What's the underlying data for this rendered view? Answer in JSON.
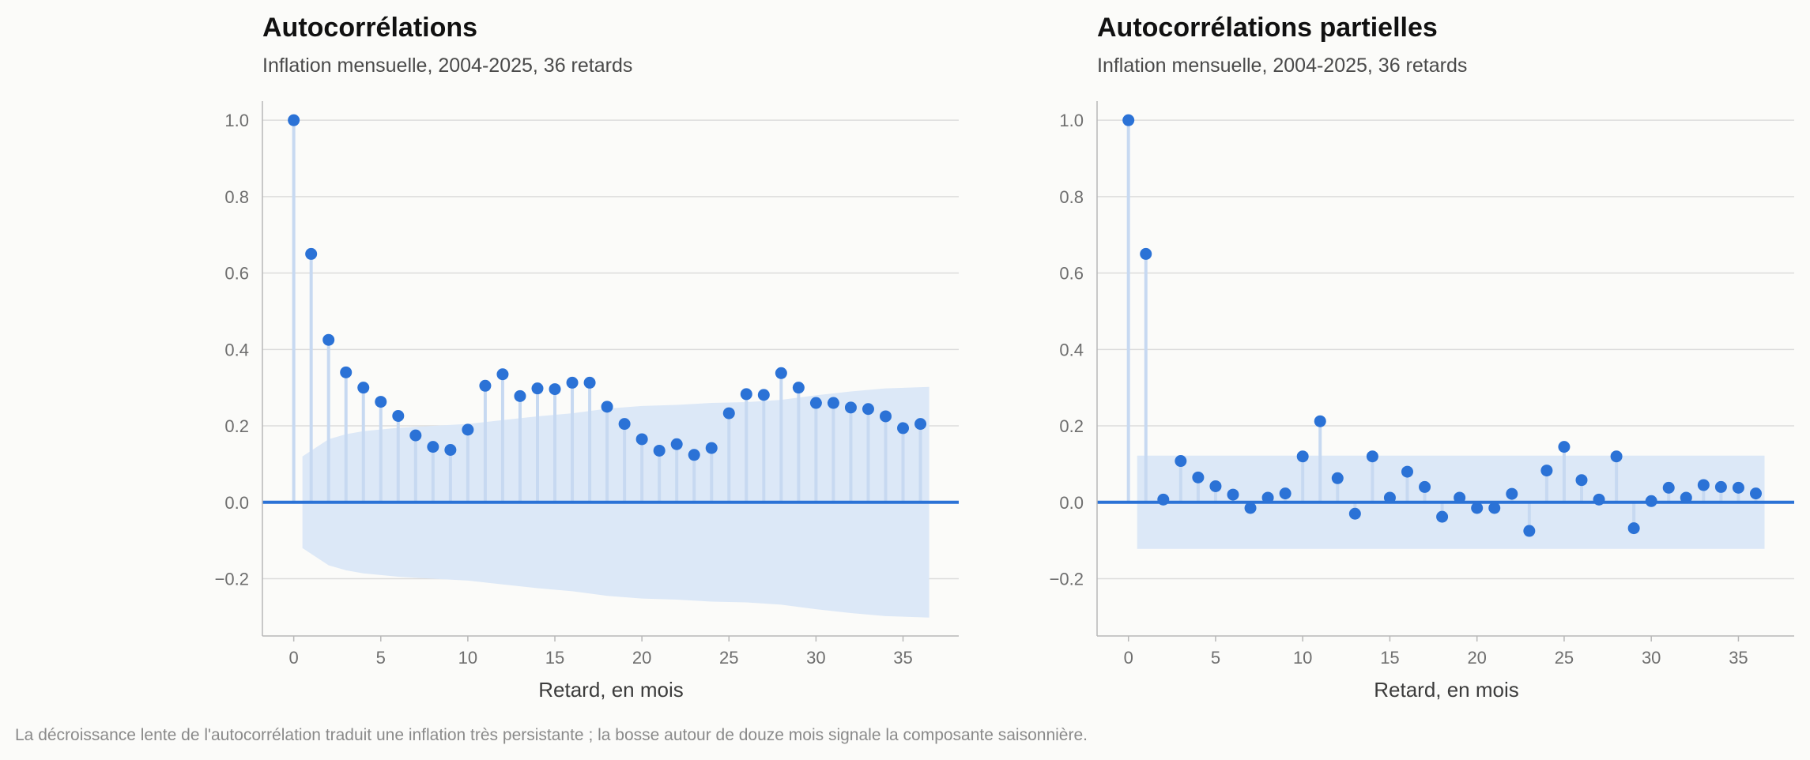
{
  "caption": "La décroissance lente de l'autocorrélation traduit une inflation très persistante ; la bosse autour de douze mois signale la composante saisonnière.",
  "colors": {
    "marker": "#2b72d6",
    "zero_line": "#2b72d6",
    "stem": "#c7d9f1",
    "band": "#dce8f7",
    "grid": "#dcdcdc",
    "axis": "#b8b8b8"
  },
  "chart_data": [
    {
      "type": "scatter",
      "title": "Autocorrélations",
      "subtitle": "Inflation mensuelle, 2004-2025, 36 retards",
      "xlabel": "Retard, en mois",
      "ylabel": "",
      "xlim": [
        -1.8,
        38.2
      ],
      "ylim": [
        -0.35,
        1.05
      ],
      "xticks": [
        0,
        5,
        10,
        15,
        20,
        25,
        30,
        35
      ],
      "xtick_labels": [
        "0",
        "5",
        "10",
        "15",
        "20",
        "25",
        "30",
        "35"
      ],
      "yticks": [
        -0.2,
        0.0,
        0.2,
        0.4,
        0.6,
        0.8,
        1.0
      ],
      "ytick_labels": [
        "−0.2",
        "0.0",
        "0.2",
        "0.4",
        "0.6",
        "0.8",
        "1.0"
      ],
      "grid": "horizontal",
      "x": [
        0,
        1,
        2,
        3,
        4,
        5,
        6,
        7,
        8,
        9,
        10,
        11,
        12,
        13,
        14,
        15,
        16,
        17,
        18,
        19,
        20,
        21,
        22,
        23,
        24,
        25,
        26,
        27,
        28,
        29,
        30,
        31,
        32,
        33,
        34,
        35,
        36
      ],
      "values": [
        1.0,
        0.65,
        0.425,
        0.34,
        0.3,
        0.263,
        0.226,
        0.175,
        0.145,
        0.137,
        0.19,
        0.305,
        0.335,
        0.278,
        0.298,
        0.296,
        0.313,
        0.313,
        0.25,
        0.205,
        0.165,
        0.135,
        0.152,
        0.124,
        0.142,
        0.233,
        0.283,
        0.281,
        0.338,
        0.3,
        0.26,
        0.26,
        0.248,
        0.244,
        0.225,
        0.194,
        0.205
      ],
      "band": {
        "x": [
          0.5,
          2,
          3,
          4,
          6,
          8,
          10,
          12,
          14,
          16,
          18,
          20,
          22,
          24,
          26,
          28,
          30,
          32,
          34,
          36.5
        ],
        "upper": [
          0.12,
          0.165,
          0.178,
          0.186,
          0.195,
          0.2,
          0.205,
          0.215,
          0.225,
          0.233,
          0.245,
          0.252,
          0.255,
          0.26,
          0.262,
          0.268,
          0.28,
          0.29,
          0.298,
          0.302
        ],
        "lower": [
          -0.12,
          -0.165,
          -0.178,
          -0.186,
          -0.195,
          -0.2,
          -0.205,
          -0.215,
          -0.225,
          -0.233,
          -0.245,
          -0.252,
          -0.255,
          -0.26,
          -0.262,
          -0.268,
          -0.28,
          -0.29,
          -0.298,
          -0.302
        ]
      }
    },
    {
      "type": "scatter",
      "title": "Autocorrélations partielles",
      "subtitle": "Inflation mensuelle, 2004-2025, 36 retards",
      "xlabel": "Retard, en mois",
      "ylabel": "",
      "xlim": [
        -1.8,
        38.2
      ],
      "ylim": [
        -0.35,
        1.05
      ],
      "xticks": [
        0,
        5,
        10,
        15,
        20,
        25,
        30,
        35
      ],
      "xtick_labels": [
        "0",
        "5",
        "10",
        "15",
        "20",
        "25",
        "30",
        "35"
      ],
      "yticks": [
        -0.2,
        0.0,
        0.2,
        0.4,
        0.6,
        0.8,
        1.0
      ],
      "ytick_labels": [
        "−0.2",
        "0.0",
        "0.2",
        "0.4",
        "0.6",
        "0.8",
        "1.0"
      ],
      "grid": "horizontal",
      "x": [
        0,
        1,
        2,
        3,
        4,
        5,
        6,
        7,
        8,
        9,
        10,
        11,
        12,
        13,
        14,
        15,
        16,
        17,
        18,
        19,
        20,
        21,
        22,
        23,
        24,
        25,
        26,
        27,
        28,
        29,
        30,
        31,
        32,
        33,
        34,
        35,
        36
      ],
      "values": [
        1.0,
        0.65,
        0.007,
        0.108,
        0.065,
        0.042,
        0.02,
        -0.015,
        0.012,
        0.023,
        0.12,
        0.212,
        0.063,
        -0.03,
        0.12,
        0.012,
        0.08,
        0.04,
        -0.038,
        0.012,
        -0.015,
        -0.015,
        0.022,
        -0.075,
        0.083,
        0.145,
        0.058,
        0.007,
        0.12,
        -0.068,
        0.003,
        0.038,
        0.012,
        0.045,
        0.04,
        0.038,
        0.023
      ],
      "band": {
        "x": [
          0.5,
          36.5
        ],
        "upper": [
          0.122,
          0.122
        ],
        "lower": [
          -0.122,
          -0.122
        ]
      }
    }
  ]
}
